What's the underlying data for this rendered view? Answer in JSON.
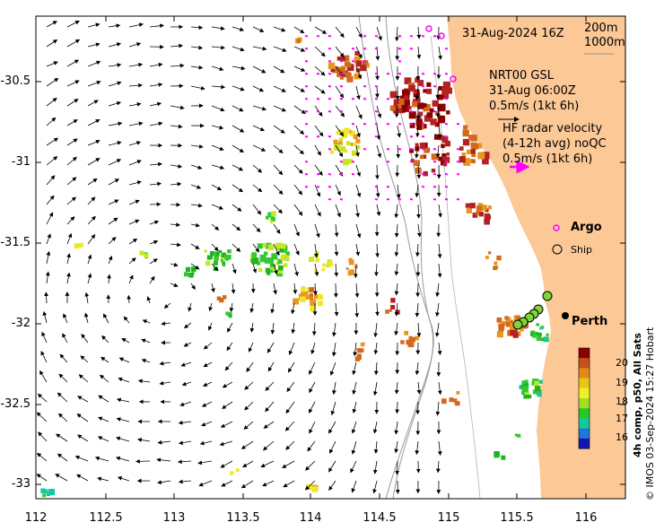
{
  "map": {
    "date_label": "31-Aug-2024 16Z",
    "isobath_labels": [
      "200m",
      "1000m"
    ],
    "gsl": {
      "title": "NRT00 GSL",
      "time": "31-Aug 06:00Z",
      "scale": "0.5m/s (1kt 6h)"
    },
    "hf_radar": {
      "title": "HF radar velocity",
      "subtitle": "(4-12h avg) noQC",
      "scale": "0.5m/s (1kt 6h)"
    },
    "legend": {
      "argo": "Argo",
      "ship": "Ship"
    },
    "city": "Perth",
    "x_ticks": [
      "112",
      "112.5",
      "113",
      "113.5",
      "114",
      "114.5",
      "115",
      "115.5",
      "116"
    ],
    "y_ticks": [
      "-30.5",
      "-31",
      "-31.5",
      "-32",
      "-32.5",
      "-33"
    ],
    "colorbar": {
      "title": "4h comp, p50, All Sats",
      "ticks": [
        "20",
        "19",
        "18",
        "17",
        "16"
      ],
      "colors": [
        "#8b0000",
        "#c8501e",
        "#e08c14",
        "#e8c814",
        "#f0f028",
        "#a0e01e",
        "#28c828",
        "#14c8a0",
        "#1e78dc",
        "#1414b4"
      ]
    },
    "credit": "© IMOS 03-Sep-2024 15:27 Hobart",
    "colors": {
      "land": "#fcc896",
      "argo": "#ff00ff",
      "hf_arrow": "#ff00ff"
    }
  }
}
